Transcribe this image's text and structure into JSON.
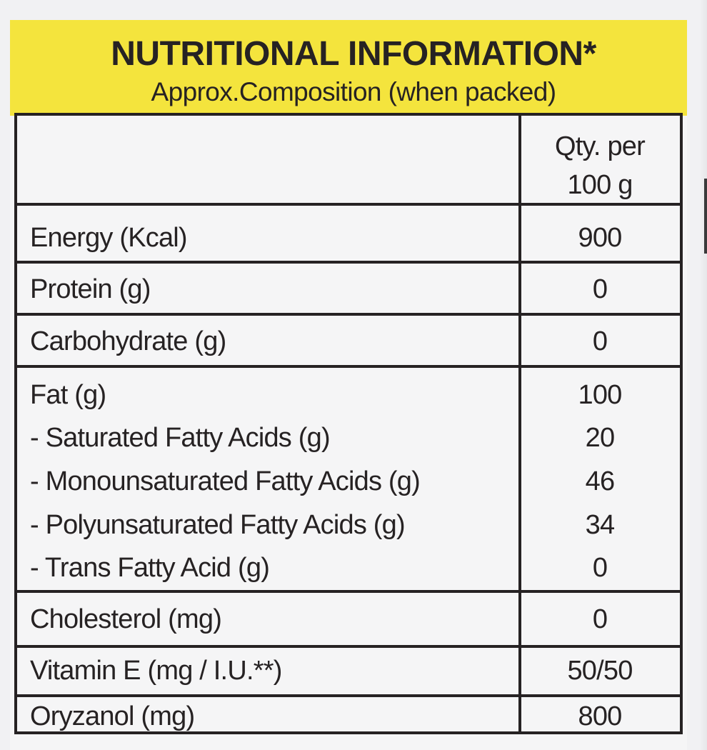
{
  "header": {
    "title": "NUTRITIONAL INFORMATION*",
    "subtitle": "Approx.Composition (when packed)"
  },
  "table": {
    "column_header": [
      "Qty. per",
      "100 g"
    ],
    "rows": [
      {
        "label": "Energy (Kcal)",
        "value": "900"
      },
      {
        "label": "Protein (g)",
        "value": "0"
      },
      {
        "label": "Carbohydrate (g)",
        "value": "0"
      },
      {
        "label": "Fat (g)",
        "value": "100",
        "sub_rows": [
          {
            "label": "- Saturated Fatty Acids (g)",
            "value": "20"
          },
          {
            "label": "- Monounsaturated Fatty Acids (g)",
            "value": "46"
          },
          {
            "label": "- Polyunsaturated Fatty Acids (g)",
            "value": "34"
          },
          {
            "label": "- Trans Fatty Acid (g)",
            "value": "0"
          }
        ]
      },
      {
        "label": "Cholesterol (mg)",
        "value": "0"
      },
      {
        "label": "Vitamin E (mg / I.U.**)",
        "value": "50/50"
      },
      {
        "label": "Oryzanol (mg)",
        "value": "800"
      }
    ]
  },
  "colors": {
    "header_band": "#f4e43d",
    "border": "#262223",
    "background": "#f5f5f6"
  }
}
